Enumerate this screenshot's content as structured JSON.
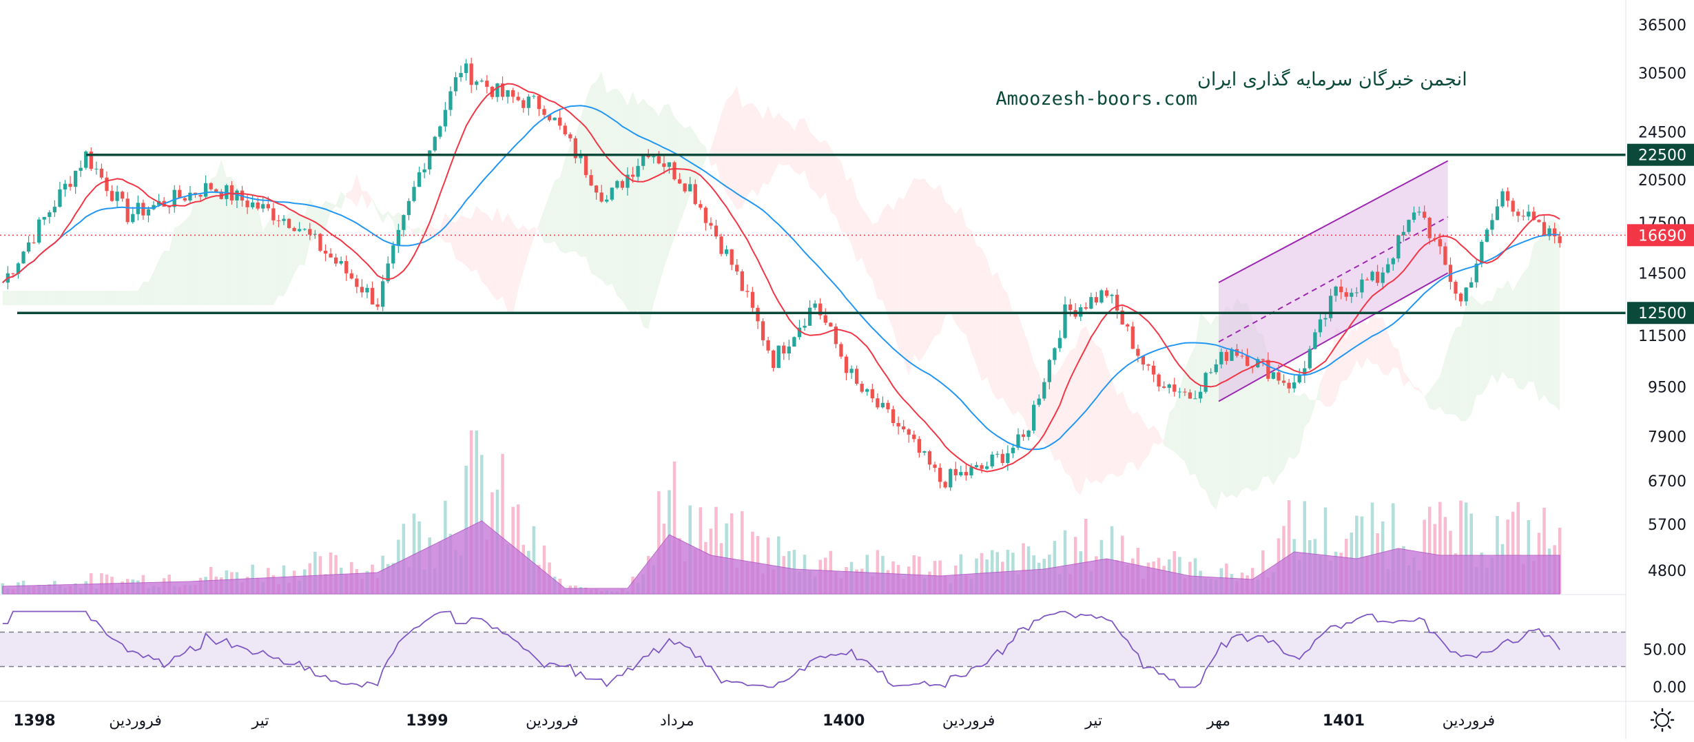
{
  "watermark": {
    "title": "انجمن خبرگان سرمایه گذاری ایران",
    "url": "Amoozesh-boors.com"
  },
  "colors": {
    "up": "#26a69a",
    "down": "#ef5350",
    "ma_fast": "#f23645",
    "ma_slow": "#2196f3",
    "level": "#0b4a3a",
    "current": "#f23645",
    "channel": "#9c27b0",
    "channel_fill": "#e1bee7",
    "volume_ma": "#c77ad9",
    "rsi": "#7e57c2",
    "rsi_band": "#ede7f6",
    "cloud_bull": "#e8f5e9",
    "cloud_bear": "#ffebee"
  },
  "chart_data": {
    "type": "candlestick",
    "scale": "log",
    "ylim": [
      4400,
      40000
    ],
    "price_ticks": [
      "36500",
      "30500",
      "24500",
      "20500",
      "17500",
      "14500",
      "11500",
      "9500",
      "7900",
      "6700",
      "5700",
      "4800"
    ],
    "levels": [
      {
        "value": 22500,
        "label": "22500"
      },
      {
        "value": 12500,
        "label": "12500"
      }
    ],
    "current_price": {
      "value": 16690,
      "label": "16690"
    },
    "time_labels": [
      {
        "label": "1398",
        "bold": true,
        "bar": 0
      },
      {
        "label": "فروردین",
        "bold": false,
        "bar": 6
      },
      {
        "label": "تیر",
        "bold": false,
        "bar": 12
      },
      {
        "label": "1399",
        "bold": true,
        "bar": 20
      },
      {
        "label": "فروردین",
        "bold": false,
        "bar": 26
      },
      {
        "label": "مرداد",
        "bold": false,
        "bar": 32
      },
      {
        "label": "1400",
        "bold": true,
        "bar": 40
      },
      {
        "label": "فروردین",
        "bold": false,
        "bar": 46
      },
      {
        "label": "تیر",
        "bold": false,
        "bar": 52
      },
      {
        "label": "مهر",
        "bold": false,
        "bar": 58
      },
      {
        "label": "1401",
        "bold": true,
        "bar": 64
      },
      {
        "label": "فروردین",
        "bold": false,
        "bar": 70
      }
    ],
    "price_path": [
      [
        0,
        14000
      ],
      [
        4,
        22500
      ],
      [
        6,
        18000
      ],
      [
        10,
        20000
      ],
      [
        14,
        17500
      ],
      [
        18,
        13000
      ],
      [
        20,
        21000
      ],
      [
        22,
        31000
      ],
      [
        24,
        28000
      ],
      [
        26,
        27000
      ],
      [
        29,
        19000
      ],
      [
        31,
        23000
      ],
      [
        33,
        20000
      ],
      [
        35,
        15000
      ],
      [
        37,
        10500
      ],
      [
        39,
        13000
      ],
      [
        41,
        9500
      ],
      [
        43,
        8200
      ],
      [
        45,
        6700
      ],
      [
        47,
        7000
      ],
      [
        49,
        7800
      ],
      [
        51,
        12500
      ],
      [
        53,
        13500
      ],
      [
        55,
        10000
      ],
      [
        57,
        9200
      ],
      [
        59,
        11000
      ],
      [
        61,
        10000
      ],
      [
        62,
        9500
      ],
      [
        64,
        13500
      ],
      [
        66,
        14200
      ],
      [
        68,
        18500
      ],
      [
        70,
        13000
      ],
      [
        72,
        19500
      ],
      [
        74,
        16690
      ]
    ],
    "channel": {
      "lower_start": [
        58,
        9000
      ],
      "lower_end": [
        69,
        14500
      ],
      "upper_start": [
        58,
        14000
      ],
      "upper_end": [
        69,
        22000
      ]
    },
    "rsi": {
      "ticks": [
        "50.00",
        "0.00"
      ],
      "upper": 70,
      "lower": 30
    },
    "volume_ma_peaks": [
      [
        0,
        0.05
      ],
      [
        9,
        0.12
      ],
      [
        18,
        0.25
      ],
      [
        23,
        1.0
      ],
      [
        27,
        0.02
      ],
      [
        30,
        0.02
      ],
      [
        32,
        0.8
      ],
      [
        34,
        0.5
      ],
      [
        38,
        0.3
      ],
      [
        45,
        0.2
      ],
      [
        50,
        0.3
      ],
      [
        53,
        0.45
      ],
      [
        57,
        0.2
      ],
      [
        60,
        0.15
      ],
      [
        62,
        0.55
      ],
      [
        65,
        0.45
      ],
      [
        67,
        0.6
      ],
      [
        69,
        0.5
      ]
    ]
  },
  "settings_icon": "gear-icon"
}
